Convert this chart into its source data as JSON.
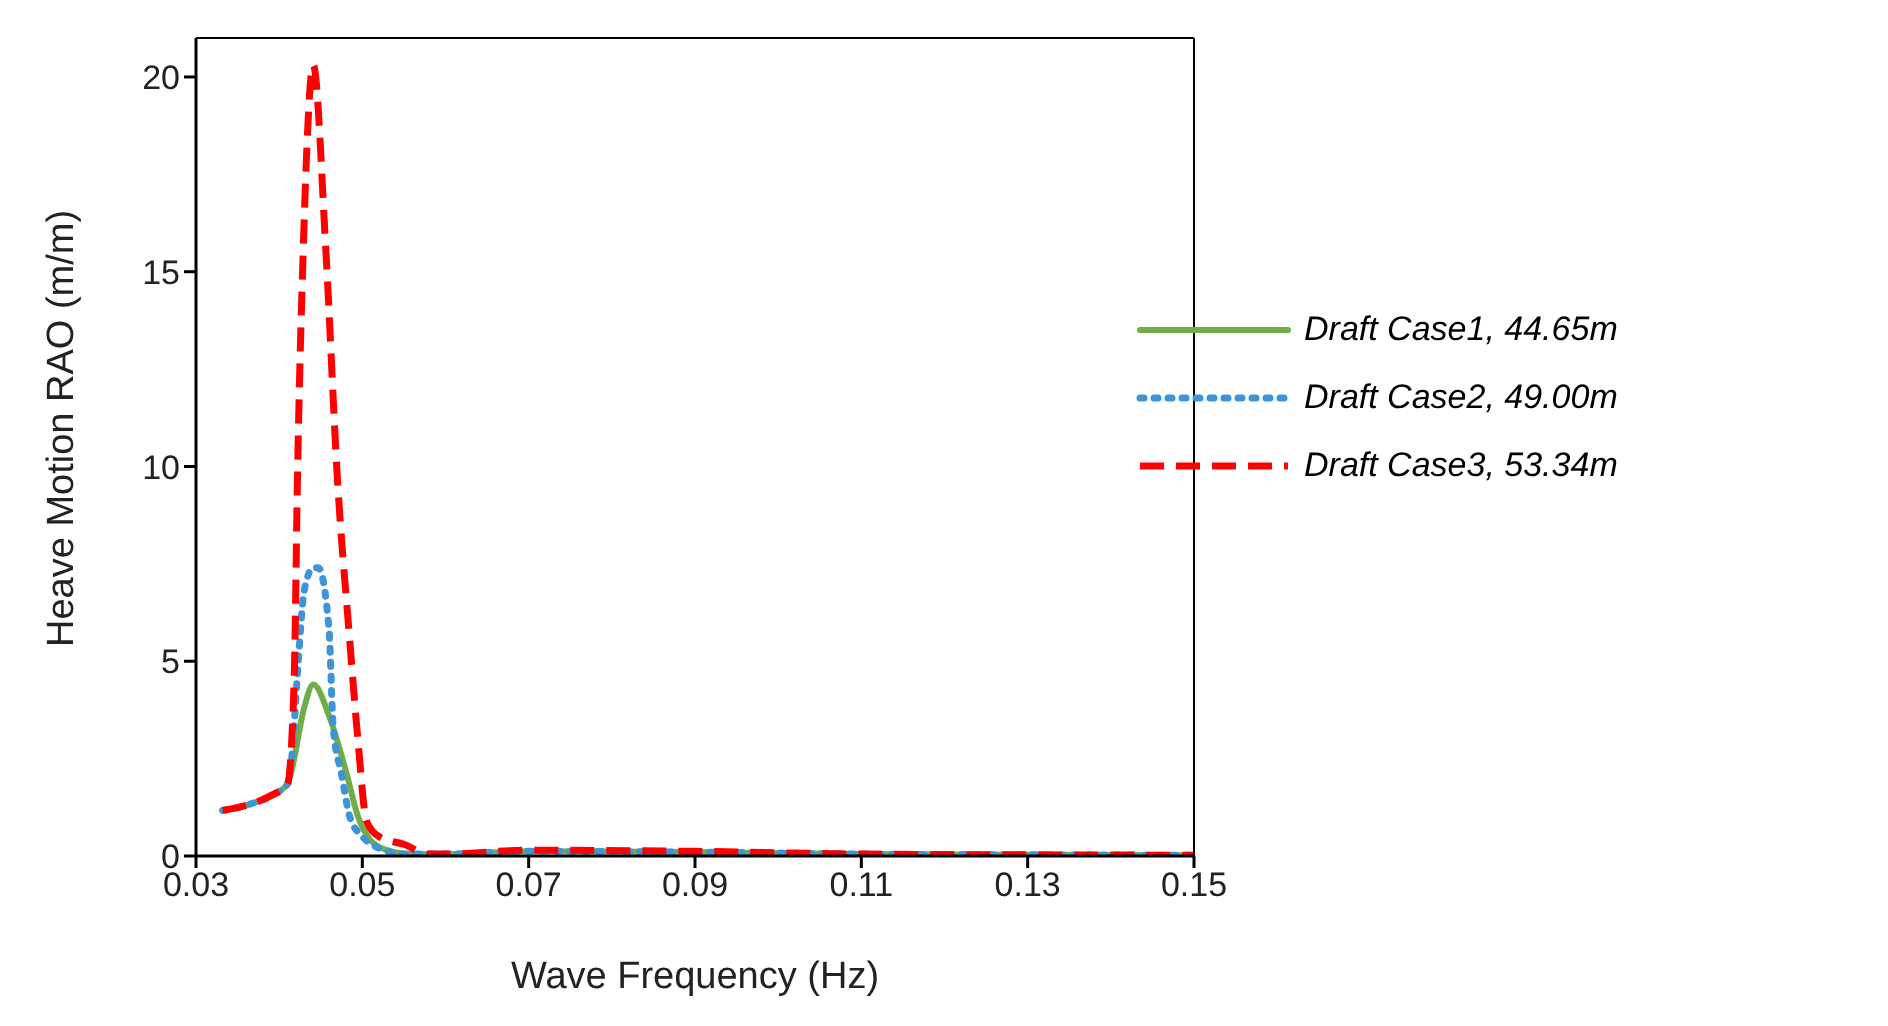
{
  "chart_data": {
    "type": "line",
    "xlabel": "Wave Frequency (Hz)",
    "ylabel": "Heave Motion RAO (m/m)",
    "xlim": [
      0.03,
      0.15
    ],
    "xticks": [
      0.03,
      0.05,
      0.07,
      0.09,
      0.11,
      0.13,
      0.15
    ],
    "ylim": [
      0,
      21
    ],
    "yticks": [
      0,
      5,
      10,
      15,
      20
    ],
    "grid": false,
    "legend": "right",
    "marker": "none",
    "series": [
      {
        "name": "Draft Case1, 44.65m",
        "color": "#70ad47",
        "line_style": "solid",
        "x": [
          0.0332,
          0.036,
          0.039,
          0.041,
          0.0415,
          0.043,
          0.0441,
          0.046,
          0.048,
          0.0495,
          0.051,
          0.053,
          0.056,
          0.06,
          0.07,
          0.09,
          0.11,
          0.13,
          0.15
        ],
        "values": [
          1.17,
          1.3,
          1.55,
          1.85,
          2.2,
          3.8,
          4.4,
          3.6,
          2.2,
          1.0,
          0.4,
          0.15,
          0.05,
          0.05,
          0.12,
          0.1,
          0.05,
          0.03,
          0.02
        ]
      },
      {
        "name": "Draft Case2, 49.00m",
        "color": "#3f94d8",
        "line_style": "dotted",
        "x": [
          0.0332,
          0.036,
          0.039,
          0.041,
          0.0415,
          0.0423,
          0.043,
          0.0441,
          0.0447,
          0.046,
          0.0465,
          0.0475,
          0.0485,
          0.05,
          0.052,
          0.055,
          0.06,
          0.07,
          0.09,
          0.11,
          0.13,
          0.15
        ],
        "values": [
          1.17,
          1.3,
          1.55,
          1.85,
          2.5,
          5.0,
          6.8,
          7.4,
          7.4,
          5.8,
          3.3,
          2.1,
          1.0,
          0.5,
          0.2,
          0.05,
          0.05,
          0.12,
          0.1,
          0.05,
          0.03,
          0.02
        ]
      },
      {
        "name": "Draft Case3, 53.34m",
        "color": "#ff0000",
        "line_style": "dashed",
        "x": [
          0.0332,
          0.036,
          0.039,
          0.041,
          0.0418,
          0.0422,
          0.0429,
          0.0441,
          0.0456,
          0.047,
          0.0485,
          0.0495,
          0.0505,
          0.052,
          0.055,
          0.058,
          0.06,
          0.07,
          0.09,
          0.11,
          0.13,
          0.15
        ],
        "values": [
          1.17,
          1.3,
          1.55,
          1.85,
          4.5,
          9.7,
          15.6,
          20.3,
          15.6,
          9.7,
          5.5,
          2.9,
          0.9,
          0.5,
          0.3,
          0.05,
          0.05,
          0.15,
          0.12,
          0.05,
          0.03,
          0.02
        ]
      }
    ]
  }
}
